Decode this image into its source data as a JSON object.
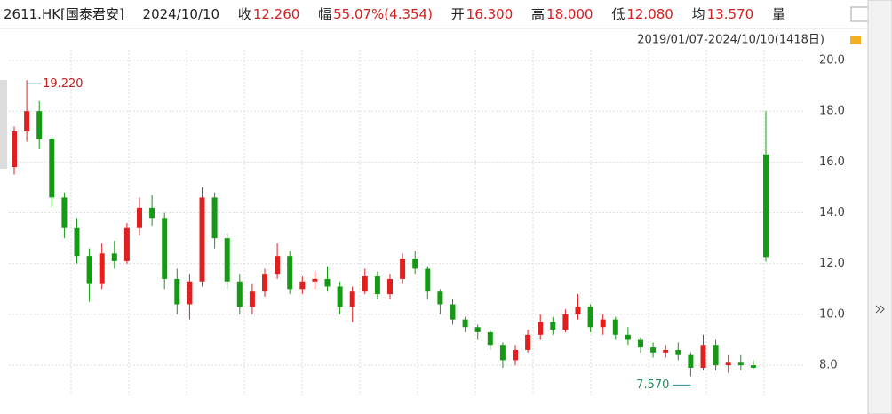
{
  "header": {
    "symbol": "2611.HK[国泰君安]",
    "date": "2024/10/10",
    "close_label": "收",
    "close": "12.260",
    "change_label": "幅",
    "change": "55.07%(4.354)",
    "open_label": "开",
    "open": "16.300",
    "high_label": "高",
    "high": "18.000",
    "low_label": "低",
    "low": "12.080",
    "avg_label": "均",
    "avg": "13.570",
    "volume_label": "量",
    "range": "2019/01/07-2024/10/10(1418日)"
  },
  "chart_data": {
    "type": "candlestick",
    "up_color": "#e02020",
    "down_color": "#169a16",
    "ylim": [
      6.36,
      20.35
    ],
    "yticks": [
      {
        "value": 8,
        "label": "8.0"
      },
      {
        "value": 10,
        "label": "10.0"
      },
      {
        "value": 12,
        "label": "12.0"
      },
      {
        "value": 14,
        "label": "14.0"
      },
      {
        "value": 16,
        "label": "16.0"
      },
      {
        "value": 18,
        "label": "18.0"
      },
      {
        "value": 20,
        "label": "20.0"
      }
    ],
    "grid": true,
    "max_label": "19.220",
    "min_label": "7.570",
    "open": [
      15.8,
      17.2,
      18.0,
      16.9,
      14.6,
      13.4,
      12.3,
      11.2,
      12.4,
      12.1,
      13.4,
      14.2,
      13.8,
      11.4,
      10.4,
      11.3,
      14.6,
      13.0,
      11.3,
      10.3,
      10.9,
      11.6,
      12.3,
      11.0,
      11.3,
      11.4,
      11.1,
      10.3,
      10.9,
      11.5,
      10.8,
      11.4,
      12.2,
      11.8,
      10.9,
      10.4,
      9.8,
      9.5,
      9.3,
      8.8,
      8.2,
      8.6,
      9.2,
      9.7,
      9.4,
      10.0,
      10.3,
      9.5,
      9.8,
      9.2,
      9.0,
      8.7,
      8.5,
      8.6,
      8.4,
      7.9,
      8.8,
      8.0,
      8.1,
      8.0,
      16.3
    ],
    "high": [
      17.4,
      19.22,
      18.4,
      17.0,
      14.8,
      13.8,
      12.6,
      12.8,
      12.9,
      13.6,
      14.6,
      14.7,
      14.0,
      11.8,
      11.6,
      15.0,
      14.8,
      13.2,
      11.6,
      11.2,
      11.8,
      12.8,
      12.5,
      11.5,
      11.7,
      11.9,
      11.3,
      11.1,
      11.8,
      11.7,
      11.6,
      12.4,
      12.5,
      11.9,
      11.0,
      10.6,
      9.9,
      9.6,
      9.4,
      8.9,
      8.8,
      9.4,
      10.0,
      9.9,
      10.2,
      10.8,
      10.4,
      10.0,
      9.9,
      9.5,
      9.1,
      8.9,
      8.8,
      8.9,
      8.5,
      9.2,
      9.0,
      8.4,
      8.4,
      8.2,
      18.0
    ],
    "low": [
      15.5,
      16.8,
      16.5,
      14.2,
      13.0,
      12.0,
      10.5,
      11.0,
      11.8,
      12.0,
      13.1,
      13.5,
      11.0,
      10.0,
      9.8,
      11.1,
      12.6,
      11.0,
      10.0,
      10.0,
      10.7,
      11.4,
      10.8,
      10.8,
      11.0,
      10.9,
      10.0,
      9.7,
      10.8,
      10.6,
      10.6,
      11.2,
      11.6,
      10.6,
      10.0,
      9.6,
      9.3,
      9.0,
      8.6,
      7.9,
      8.0,
      8.5,
      9.0,
      9.2,
      9.3,
      9.8,
      9.3,
      9.2,
      9.0,
      8.8,
      8.5,
      8.3,
      8.3,
      8.2,
      7.57,
      7.8,
      7.8,
      7.7,
      7.8,
      7.85,
      12.08
    ],
    "close": [
      17.2,
      18.0,
      16.9,
      14.6,
      13.4,
      12.3,
      11.2,
      12.4,
      12.1,
      13.4,
      14.2,
      13.8,
      11.4,
      10.4,
      11.3,
      14.6,
      13.0,
      11.3,
      10.3,
      10.9,
      11.6,
      12.3,
      11.0,
      11.3,
      11.4,
      11.1,
      10.3,
      10.9,
      11.5,
      10.8,
      11.4,
      12.2,
      11.8,
      10.9,
      10.4,
      9.8,
      9.5,
      9.3,
      8.8,
      8.2,
      8.6,
      9.2,
      9.7,
      9.4,
      10.0,
      10.3,
      9.5,
      9.8,
      9.2,
      9.0,
      8.7,
      8.5,
      8.6,
      8.4,
      7.9,
      8.8,
      8.0,
      8.1,
      8.0,
      7.9,
      12.26
    ]
  }
}
